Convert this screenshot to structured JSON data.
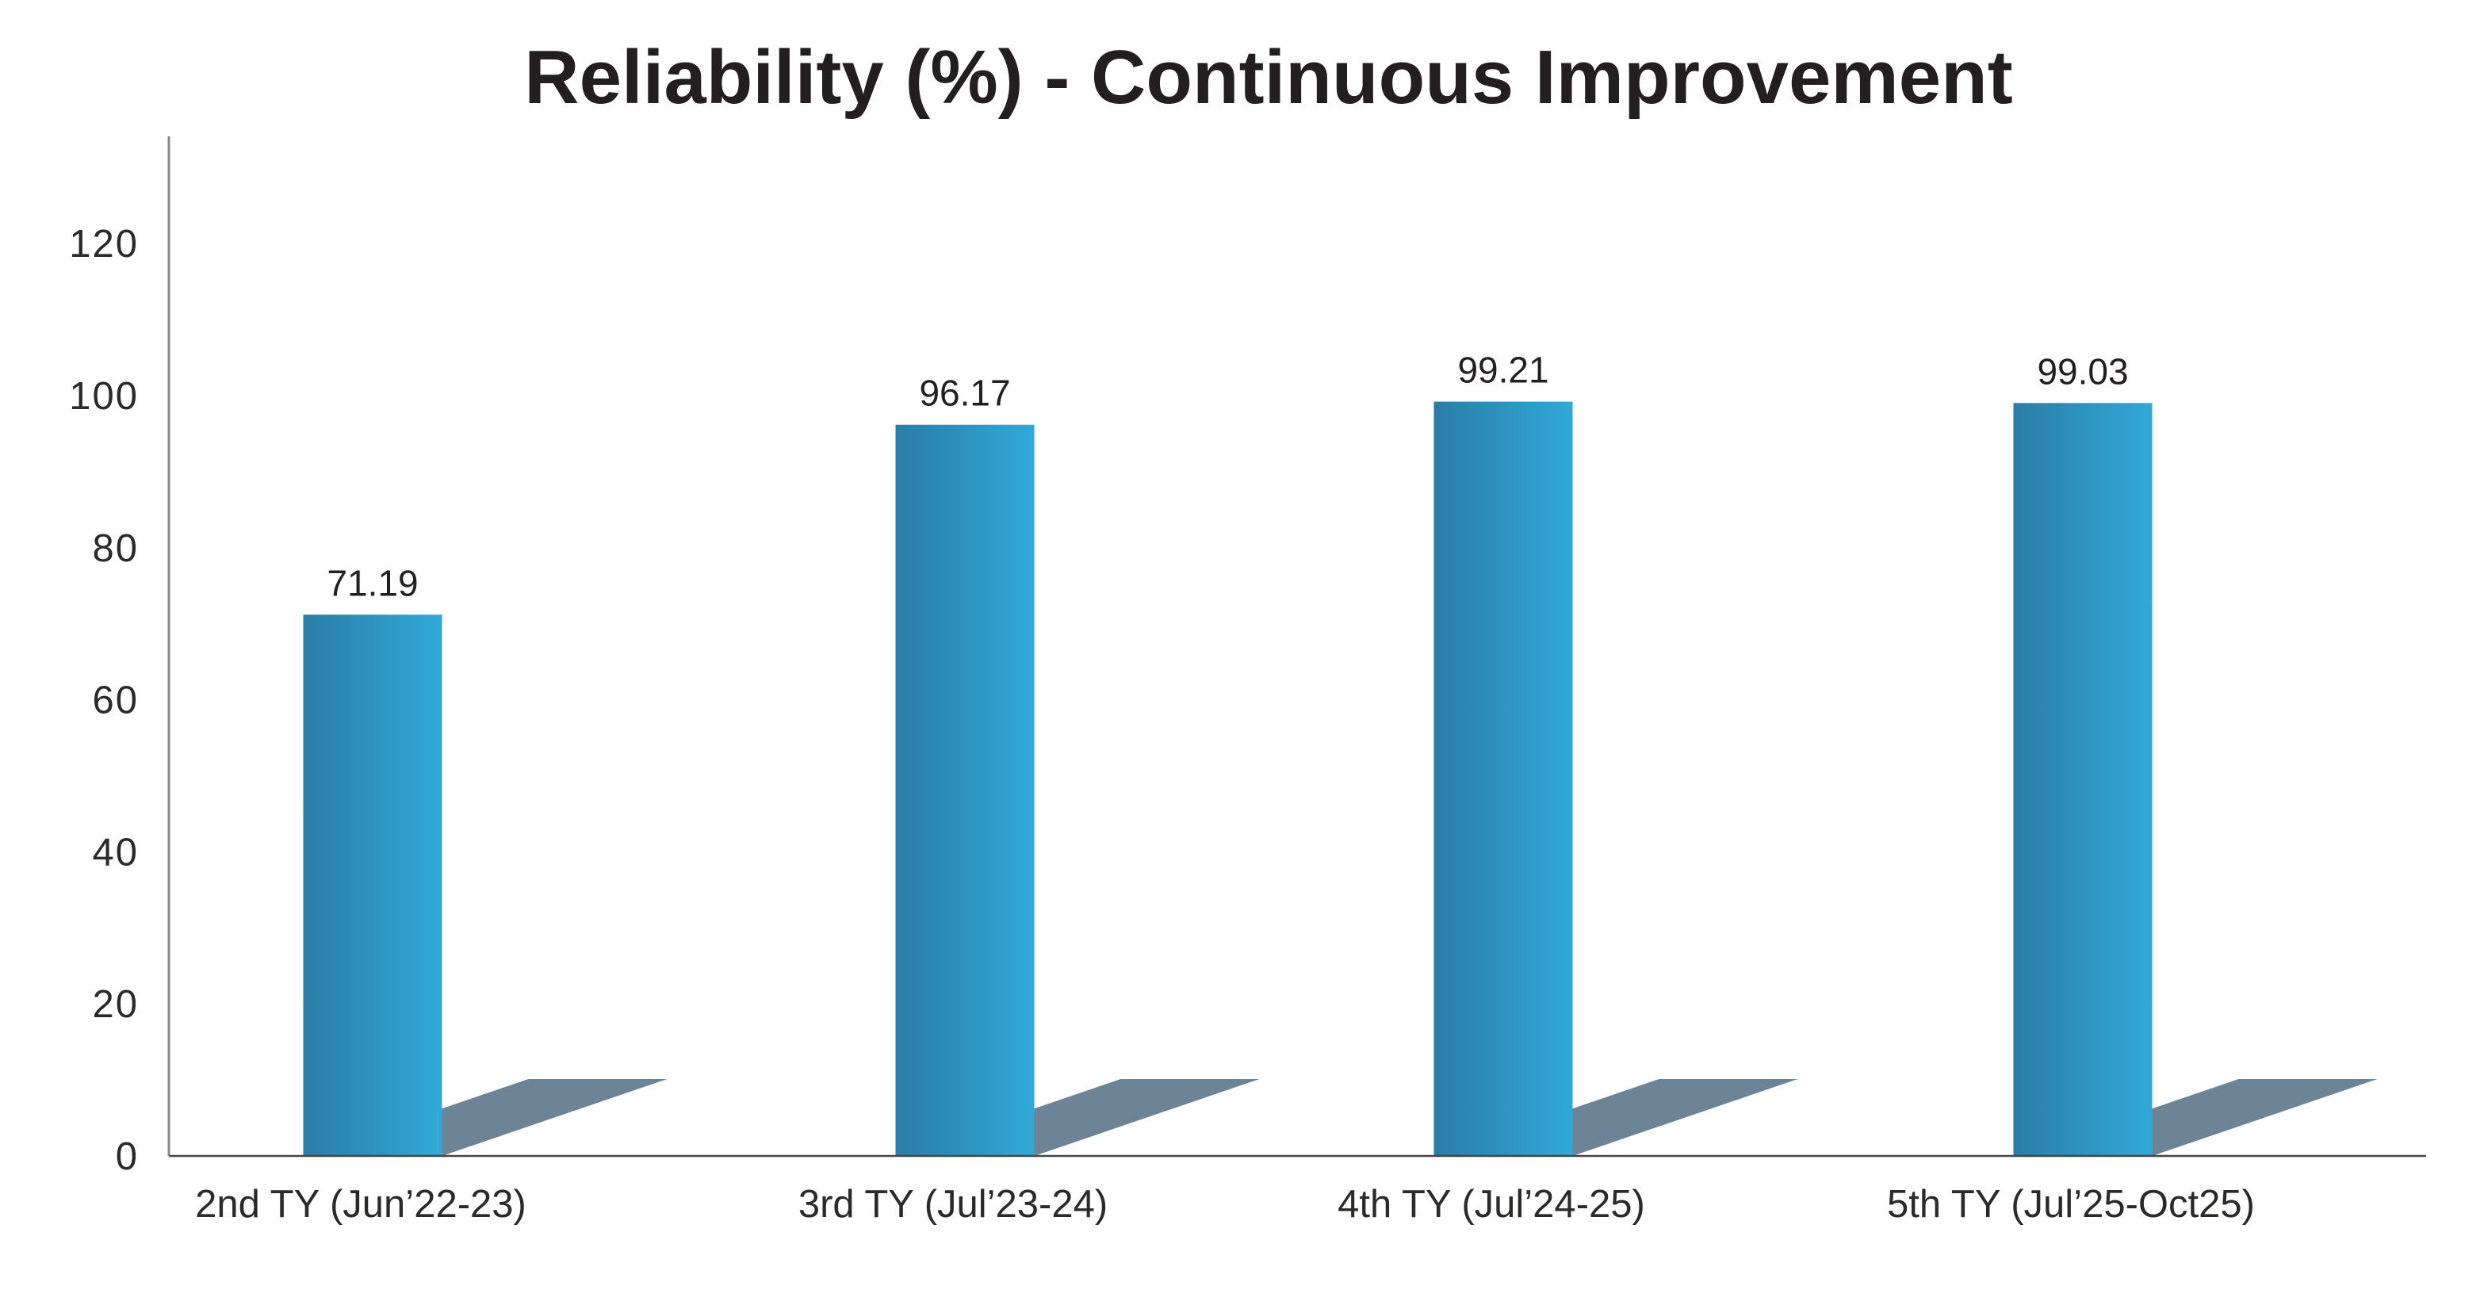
{
  "title": "Reliability (%) - Continuous Improvement",
  "chart_data": {
    "type": "bar",
    "title": "Reliability (%) - Continuous Improvement",
    "categories": [
      "2nd TY (Jun’22-23)",
      "3rd TY (Jul’23-24)",
      "4th TY (Jul’24-25)",
      "5th TY (Jul’25-Oct25)"
    ],
    "values": [
      71.19,
      96.17,
      99.21,
      99.03
    ],
    "value_labels": [
      "71.19",
      "96.17",
      "99.21",
      "99.03"
    ],
    "xlabel": "",
    "ylabel": "",
    "yticks": [
      0,
      20,
      40,
      60,
      80,
      100,
      120
    ],
    "ytick_labels": [
      "0",
      "20",
      "40",
      "60",
      "80",
      "100",
      "120"
    ],
    "ylim": [
      0,
      134
    ],
    "grid": false,
    "legend": null,
    "colors": {
      "bar_gradient_left": "#2a7da6",
      "bar_gradient_right": "#31a9d8",
      "shadow": "#6d8496",
      "y_axis_line": "#8a8a8a",
      "x_axis_line": "#454545",
      "text": "#2b2a29",
      "title_text": "#231f20",
      "background": "#ffffff"
    }
  }
}
